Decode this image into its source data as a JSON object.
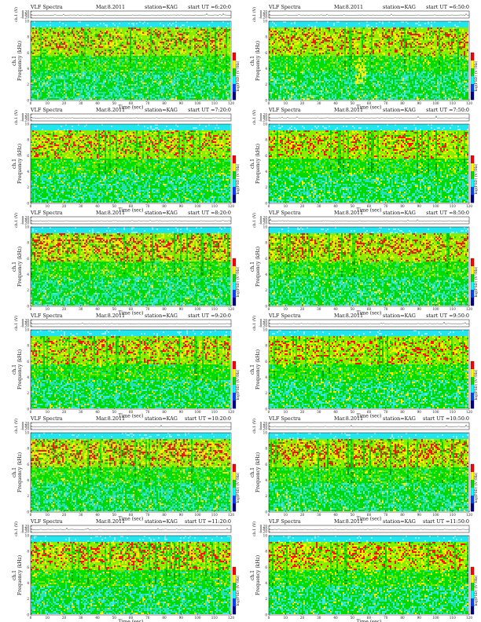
{
  "page": {
    "background": "#ffffff"
  },
  "chart_data": [
    {
      "type": "heatmap",
      "title_left": "VLF Spectra",
      "title_date": "Mar.8.2011",
      "title_station": "station=KAG",
      "title_ut": "start UT =6:20:0",
      "top_ylabel": "ch.1 (V)",
      "top_yticks": [
        "0.20",
        "0.00",
        "-0.20"
      ],
      "ylabel": "Frequency (kHz)",
      "ylabel_channel": "ch.1",
      "xlabel": "Time (sec)",
      "xlim": [
        0,
        120
      ],
      "xticks": [
        0,
        10,
        20,
        30,
        40,
        50,
        60,
        70,
        80,
        90,
        100,
        110,
        120
      ],
      "ylim": [
        0,
        10
      ],
      "yticks": [
        0,
        2,
        4,
        6,
        8,
        10
      ],
      "colorbar_label": "log(PSD) (V²/Hz)",
      "colorbar_colors": [
        "#ff0000",
        "#ffff00",
        "#00dd00",
        "#00ffff",
        "#0044ff",
        "#00008b"
      ],
      "intensity": 0.55,
      "burst_at_sec": null
    },
    {
      "type": "heatmap",
      "title_left": "VLF Spectra",
      "title_date": "Mar.8.2011",
      "title_station": "station=KAG",
      "title_ut": "start UT =6:50:0",
      "top_ylabel": "ch.1 (V)",
      "top_yticks": [
        "0.20",
        "0.00",
        "-0.20"
      ],
      "ylabel": "Frequency (kHz)",
      "ylabel_channel": "ch.1",
      "xlabel": "Time (sec)",
      "xlim": [
        0,
        120
      ],
      "xticks": [
        0,
        10,
        20,
        30,
        40,
        50,
        60,
        70,
        80,
        90,
        100,
        110,
        120
      ],
      "ylim": [
        0,
        10
      ],
      "yticks": [
        0,
        2,
        4,
        6,
        8,
        10
      ],
      "colorbar_label": "log(PSD) (V²/Hz)",
      "colorbar_colors": [
        "#ff0000",
        "#ffff00",
        "#00dd00",
        "#00ffff",
        "#0044ff",
        "#00008b"
      ],
      "intensity": 0.6,
      "burst_at_sec": 55
    },
    {
      "type": "heatmap",
      "title_left": "VLF Spectra",
      "title_date": "Mar.8.2011",
      "title_station": "station=KAG",
      "title_ut": "start UT =7:20:0",
      "top_ylabel": "ch.1 (V)",
      "top_yticks": [
        "0.20",
        "0.00",
        "-0.20"
      ],
      "ylabel": "Frequency (kHz)",
      "ylabel_channel": "ch.1",
      "xlabel": "Time (sec)",
      "xlim": [
        0,
        120
      ],
      "xticks": [
        0,
        10,
        20,
        30,
        40,
        50,
        60,
        70,
        80,
        90,
        100,
        110,
        120
      ],
      "ylim": [
        0,
        10
      ],
      "yticks": [
        0,
        2,
        4,
        6,
        8,
        10
      ],
      "colorbar_label": "log(PSD) (V²/Hz)",
      "colorbar_colors": [
        "#ff0000",
        "#ffff00",
        "#00dd00",
        "#00ffff",
        "#0044ff",
        "#00008b"
      ],
      "intensity": 0.6,
      "burst_at_sec": null
    },
    {
      "type": "heatmap",
      "title_left": "VLF Spectra",
      "title_date": "Mar.8.2011",
      "title_station": "station=KAG",
      "title_ut": "start UT =7:50:0",
      "top_ylabel": "ch.1 (V)",
      "top_yticks": [
        "0.20",
        "0.00",
        "-0.20"
      ],
      "ylabel": "Frequency (kHz)",
      "ylabel_channel": "ch.1",
      "xlabel": "Time (sec)",
      "xlim": [
        0,
        120
      ],
      "xticks": [
        0,
        10,
        20,
        30,
        40,
        50,
        60,
        70,
        80,
        90,
        100,
        110,
        120
      ],
      "ylim": [
        0,
        10
      ],
      "yticks": [
        0,
        2,
        4,
        6,
        8,
        10
      ],
      "colorbar_label": "log(PSD) (V²/Hz)",
      "colorbar_colors": [
        "#ff0000",
        "#ffff00",
        "#00dd00",
        "#00ffff",
        "#0044ff",
        "#00008b"
      ],
      "intensity": 0.6,
      "burst_at_sec": null
    },
    {
      "type": "heatmap",
      "title_left": "VLF Spectra",
      "title_date": "Mar.8.2011",
      "title_station": "station=KAG",
      "title_ut": "start UT =8:20:0",
      "top_ylabel": "ch.1 (V)",
      "top_yticks": [
        "0.20",
        "0.00",
        "-0.20"
      ],
      "ylabel": "Frequency (kHz)",
      "ylabel_channel": "ch.1",
      "xlabel": "Time (sec)",
      "xlim": [
        0,
        120
      ],
      "xticks": [
        0,
        10,
        20,
        30,
        40,
        50,
        60,
        70,
        80,
        90,
        100,
        110,
        120
      ],
      "ylim": [
        0,
        10
      ],
      "yticks": [
        0,
        2,
        4,
        6,
        8,
        10
      ],
      "colorbar_label": "log(PSD) (V²/Hz)",
      "colorbar_colors": [
        "#ff0000",
        "#ffff00",
        "#00dd00",
        "#00ffff",
        "#0044ff",
        "#00008b"
      ],
      "intensity": 0.75,
      "burst_at_sec": null
    },
    {
      "type": "heatmap",
      "title_left": "VLF Spectra",
      "title_date": "Mar.8.2011",
      "title_station": "station=KAG",
      "title_ut": "start UT =8:50:0",
      "top_ylabel": "ch.1 (V)",
      "top_yticks": [
        "0.20",
        "0.00",
        "-0.20"
      ],
      "ylabel": "Frequency (kHz)",
      "ylabel_channel": "ch.1",
      "xlabel": "Time (sec)",
      "xlim": [
        0,
        120
      ],
      "xticks": [
        0,
        10,
        20,
        30,
        40,
        50,
        60,
        70,
        80,
        90,
        100,
        110,
        120
      ],
      "ylim": [
        0,
        10
      ],
      "yticks": [
        0,
        2,
        4,
        6,
        8,
        10
      ],
      "colorbar_label": "log(PSD) (V²/Hz)",
      "colorbar_colors": [
        "#ff0000",
        "#ffff00",
        "#00dd00",
        "#00ffff",
        "#0044ff",
        "#00008b"
      ],
      "intensity": 0.65,
      "burst_at_sec": null
    },
    {
      "type": "heatmap",
      "title_left": "VLF Spectra",
      "title_date": "Mar.8.2011",
      "title_station": "station=KAG",
      "title_ut": "start UT =9:20:0",
      "top_ylabel": "ch.1 (V)",
      "top_yticks": [
        "0.20",
        "0.00",
        "-0.20"
      ],
      "ylabel": "Frequency (kHz)",
      "ylabel_channel": "ch.1",
      "xlabel": "Time (sec)",
      "xlim": [
        0,
        120
      ],
      "xticks": [
        0,
        10,
        20,
        30,
        40,
        50,
        60,
        70,
        80,
        90,
        100,
        110,
        120
      ],
      "ylim": [
        0,
        10
      ],
      "yticks": [
        0,
        2,
        4,
        6,
        8,
        10
      ],
      "colorbar_label": "log(PSD) (V²/Hz)",
      "colorbar_colors": [
        "#ff0000",
        "#ffff00",
        "#00dd00",
        "#00ffff",
        "#0044ff",
        "#00008b"
      ],
      "intensity": 0.6,
      "burst_at_sec": null
    },
    {
      "type": "heatmap",
      "title_left": "VLF Spectra",
      "title_date": "Mar.8.2011",
      "title_station": "station=KAG",
      "title_ut": "start UT =9:50:0",
      "top_ylabel": "ch.1 (V)",
      "top_yticks": [
        "0.20",
        "0.00",
        "-0.20"
      ],
      "ylabel": "Frequency (kHz)",
      "ylabel_channel": "ch.1",
      "xlabel": "Time (sec)",
      "xlim": [
        0,
        120
      ],
      "xticks": [
        0,
        10,
        20,
        30,
        40,
        50,
        60,
        70,
        80,
        90,
        100,
        110,
        120
      ],
      "ylim": [
        0,
        10
      ],
      "yticks": [
        0,
        2,
        4,
        6,
        8,
        10
      ],
      "colorbar_label": "log(PSD) (V²/Hz)",
      "colorbar_colors": [
        "#ff0000",
        "#ffff00",
        "#00dd00",
        "#00ffff",
        "#0044ff",
        "#00008b"
      ],
      "intensity": 0.55,
      "burst_at_sec": null
    },
    {
      "type": "heatmap",
      "title_left": "VLF Spectra",
      "title_date": "Mar.8.2011",
      "title_station": "station=KAG",
      "title_ut": "start UT =10:20:0",
      "top_ylabel": "ch.1 (V)",
      "top_yticks": [
        "0.20",
        "0.00",
        "-0.20"
      ],
      "ylabel": "Frequency (kHz)",
      "ylabel_channel": "ch.1",
      "xlabel": "Time (sec)",
      "xlim": [
        0,
        120
      ],
      "xticks": [
        0,
        10,
        20,
        30,
        40,
        50,
        60,
        70,
        80,
        90,
        100,
        110,
        120
      ],
      "ylim": [
        0,
        10
      ],
      "yticks": [
        0,
        2,
        4,
        6,
        8,
        10
      ],
      "colorbar_label": "log(PSD) (V²/Hz)",
      "colorbar_colors": [
        "#ff0000",
        "#ffff00",
        "#00dd00",
        "#00ffff",
        "#0044ff",
        "#00008b"
      ],
      "intensity": 0.75,
      "burst_at_sec": null
    },
    {
      "type": "heatmap",
      "title_left": "VLF Spectra",
      "title_date": "Mar.8.2011",
      "title_station": "station=KAG",
      "title_ut": "start UT =10:50:0",
      "top_ylabel": "ch.1 (V)",
      "top_yticks": [
        "0.20",
        "0.00",
        "-0.20"
      ],
      "ylabel": "Frequency (kHz)",
      "ylabel_channel": "ch.1",
      "xlabel": "Time (sec)",
      "xlim": [
        0,
        120
      ],
      "xticks": [
        0,
        10,
        20,
        30,
        40,
        50,
        60,
        70,
        80,
        90,
        100,
        110,
        120
      ],
      "ylim": [
        0,
        10
      ],
      "yticks": [
        0,
        2,
        4,
        6,
        8,
        10
      ],
      "colorbar_label": "log(PSD) (V²/Hz)",
      "colorbar_colors": [
        "#ff0000",
        "#ffff00",
        "#00dd00",
        "#00ffff",
        "#0044ff",
        "#00008b"
      ],
      "intensity": 0.7,
      "burst_at_sec": null
    },
    {
      "type": "heatmap",
      "title_left": "VLF Spectra",
      "title_date": "Mar.8.2011",
      "title_station": "station=KAG",
      "title_ut": "start UT =11:20:0",
      "top_ylabel": "ch.1 (V)",
      "top_yticks": [
        "0.20",
        "0.00",
        "-0.20"
      ],
      "ylabel": "Frequency (kHz)",
      "ylabel_channel": "ch.1",
      "xlabel": "Time (sec)",
      "xlim": [
        0,
        120
      ],
      "xticks": [
        0,
        10,
        20,
        30,
        40,
        50,
        60,
        70,
        80,
        90,
        100,
        110,
        120
      ],
      "ylim": [
        0,
        10
      ],
      "yticks": [
        0,
        2,
        4,
        6,
        8,
        10
      ],
      "colorbar_label": "log(PSD) (V²/Hz)",
      "colorbar_colors": [
        "#ff0000",
        "#ffff00",
        "#00dd00",
        "#00ffff",
        "#0044ff",
        "#00008b"
      ],
      "intensity": 0.7,
      "burst_at_sec": null
    },
    {
      "type": "heatmap",
      "title_left": "VLF Spectra",
      "title_date": "Mar.8.2011",
      "title_station": "station=KAG",
      "title_ut": "start UT =11:50:0",
      "top_ylabel": "ch.1 (V)",
      "top_yticks": [
        "0.20",
        "0.00",
        "-0.20"
      ],
      "ylabel": "Frequency (kHz)",
      "ylabel_channel": "ch.1",
      "xlabel": "Time (sec)",
      "xlim": [
        0,
        120
      ],
      "xticks": [
        0,
        10,
        20,
        30,
        40,
        50,
        60,
        70,
        80,
        90,
        100,
        110,
        120
      ],
      "ylim": [
        0,
        10
      ],
      "yticks": [
        0,
        2,
        4,
        6,
        8,
        10
      ],
      "colorbar_label": "log(PSD) (V²/Hz)",
      "colorbar_colors": [
        "#ff0000",
        "#ffff00",
        "#00dd00",
        "#00ffff",
        "#0044ff",
        "#00008b"
      ],
      "intensity": 0.65,
      "burst_at_sec": null
    }
  ]
}
